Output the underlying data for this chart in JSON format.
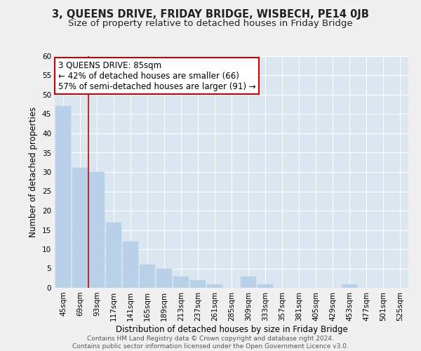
{
  "title": "3, QUEENS DRIVE, FRIDAY BRIDGE, WISBECH, PE14 0JB",
  "subtitle": "Size of property relative to detached houses in Friday Bridge",
  "xlabel": "Distribution of detached houses by size in Friday Bridge",
  "ylabel": "Number of detached properties",
  "categories": [
    "45sqm",
    "69sqm",
    "93sqm",
    "117sqm",
    "141sqm",
    "165sqm",
    "189sqm",
    "213sqm",
    "237sqm",
    "261sqm",
    "285sqm",
    "309sqm",
    "333sqm",
    "357sqm",
    "381sqm",
    "405sqm",
    "429sqm",
    "453sqm",
    "477sqm",
    "501sqm",
    "525sqm"
  ],
  "values": [
    47,
    31,
    30,
    17,
    12,
    6,
    5,
    3,
    2,
    1,
    0,
    3,
    1,
    0,
    0,
    0,
    0,
    1,
    0,
    0,
    0
  ],
  "bar_color": "#b8d0e8",
  "bar_edge_color": "#b8d0e8",
  "background_color": "#dce6f0",
  "fig_background": "#f0f0f0",
  "vline_color": "#cc0000",
  "vline_x": 1.5,
  "annotation_line1": "3 QUEENS DRIVE: 85sqm",
  "annotation_line2": "← 42% of detached houses are smaller (66)",
  "annotation_line3": "57% of semi-detached houses are larger (91) →",
  "annotation_box_color": "#ffffff",
  "annotation_box_edge": "#cc0000",
  "ylim": [
    0,
    60
  ],
  "yticks": [
    0,
    5,
    10,
    15,
    20,
    25,
    30,
    35,
    40,
    45,
    50,
    55,
    60
  ],
  "footer": "Contains HM Land Registry data © Crown copyright and database right 2024.\nContains public sector information licensed under the Open Government Licence v3.0.",
  "title_fontsize": 10.5,
  "subtitle_fontsize": 9.5,
  "axis_label_fontsize": 8.5,
  "tick_fontsize": 7.5,
  "annotation_fontsize": 8.5,
  "footer_fontsize": 6.5
}
